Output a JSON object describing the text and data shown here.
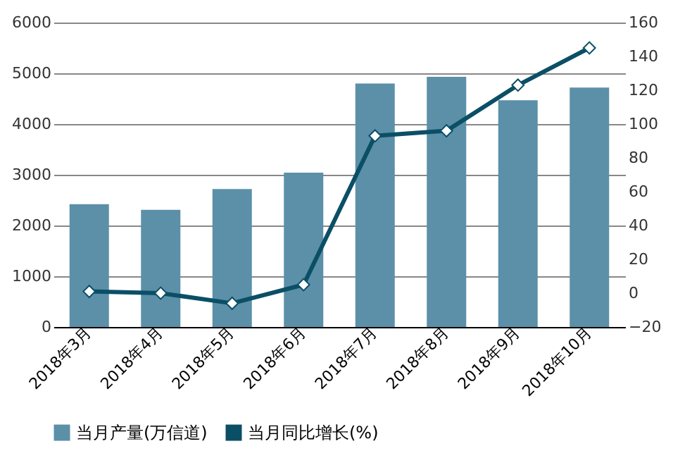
{
  "chart_data": {
    "type": "bar",
    "categories": [
      "2018年3月",
      "2018年4月",
      "2018年5月",
      "2018年6月",
      "2018年7月",
      "2018年8月",
      "2018年9月",
      "2018年10月"
    ],
    "series": [
      {
        "name": "当月产量(万信道)",
        "color": "#5b90a8",
        "values": [
          2420,
          2310,
          2720,
          3040,
          4800,
          4930,
          4470,
          4720
        ]
      },
      {
        "name": "当月同比增长(%)",
        "type": "line",
        "axis": "y2",
        "color": "#0b4f66",
        "marker": "diamond",
        "values": [
          1,
          0,
          -6,
          5,
          93,
          96,
          123,
          145
        ]
      }
    ],
    "ylim": [
      0,
      6000
    ],
    "yticks": [
      0,
      1000,
      2000,
      3000,
      4000,
      5000,
      6000
    ],
    "y2lim": [
      -20,
      160
    ],
    "y2ticks": [
      -20,
      0,
      20,
      40,
      60,
      80,
      100,
      120,
      140,
      160
    ],
    "grid": "y",
    "legend": "bottom"
  }
}
